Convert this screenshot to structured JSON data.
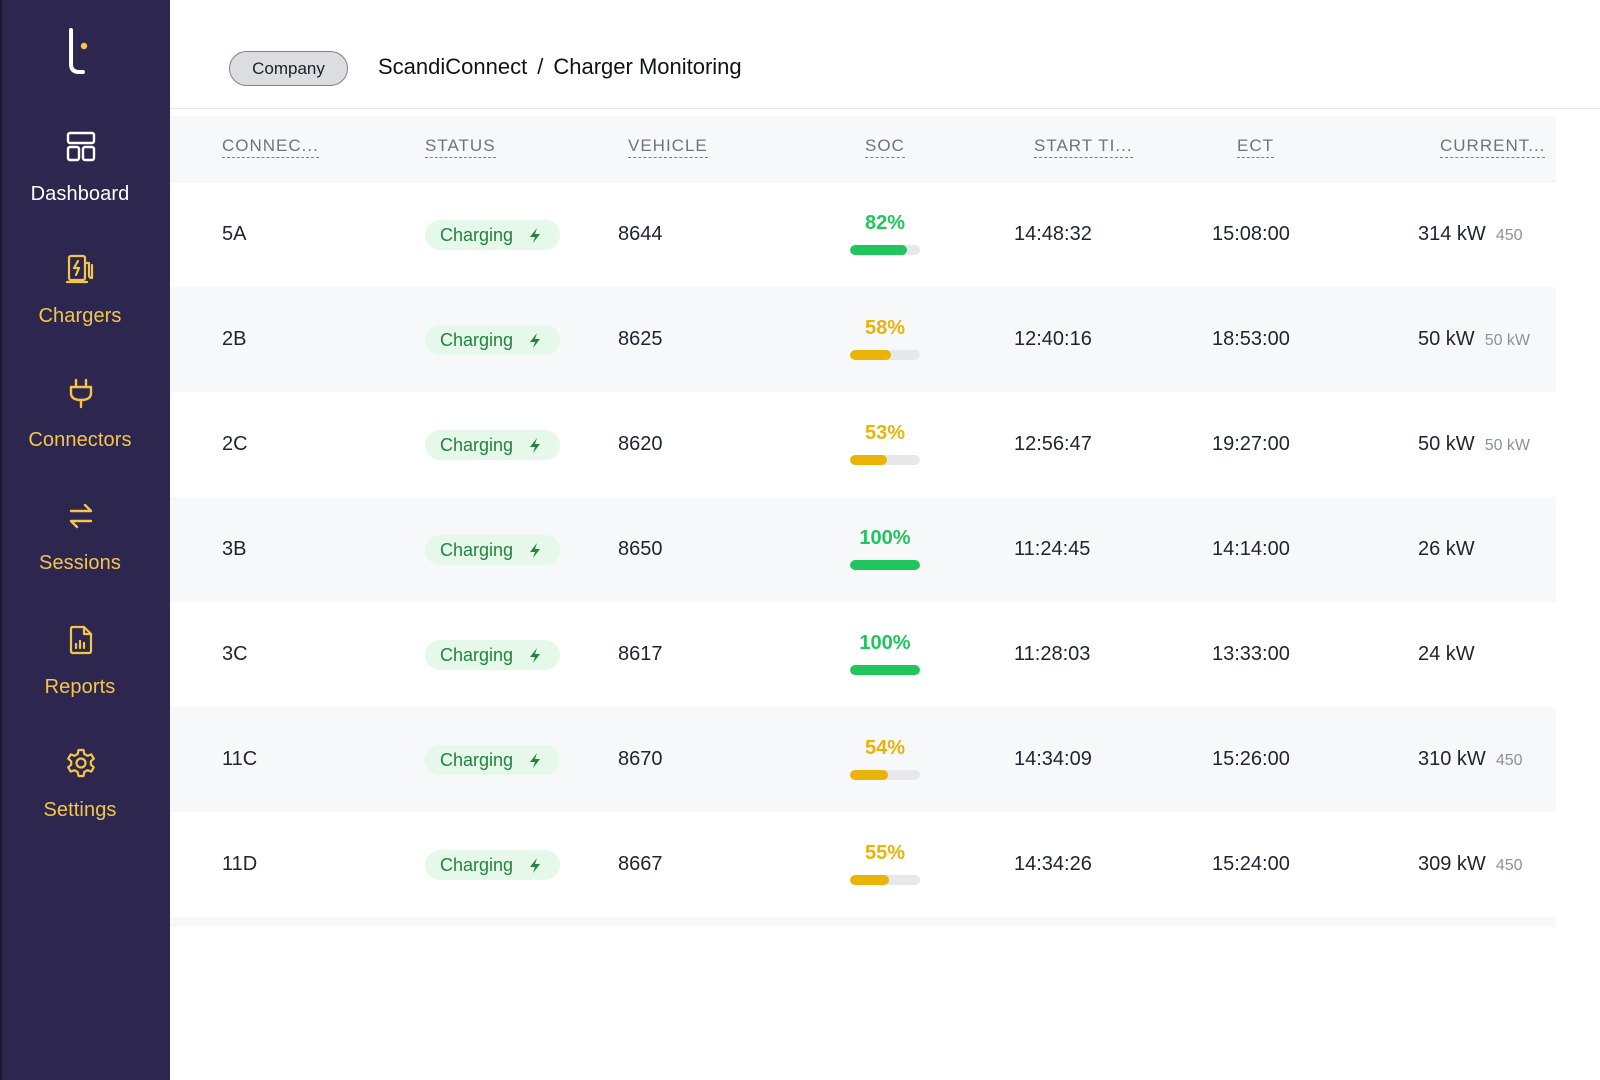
{
  "sidebar": {
    "items": [
      {
        "label": "Dashboard",
        "icon": "dashboard-icon",
        "active": true
      },
      {
        "label": "Chargers",
        "icon": "charger-icon"
      },
      {
        "label": "Connectors",
        "icon": "plug-icon"
      },
      {
        "label": "Sessions",
        "icon": "arrows-exchange-icon"
      },
      {
        "label": "Reports",
        "icon": "report-icon"
      },
      {
        "label": "Settings",
        "icon": "gear-icon"
      }
    ]
  },
  "header": {
    "company_button": "Company",
    "breadcrumb": [
      "ScandiConnect",
      "/",
      "Charger Monitoring"
    ]
  },
  "table": {
    "columns": [
      "CONNEC...",
      "STATUS",
      "VEHICLE",
      "SOC",
      "START TI...",
      "ECT",
      "CURRENT..."
    ],
    "rows": [
      {
        "connector": "5A",
        "status": "Charging",
        "vehicle": "8644",
        "soc": "82%",
        "soc_value": 82,
        "soc_color": "#21c55d",
        "start": "14:48:32",
        "ect": "15:08:00",
        "power": "314 kW",
        "max": "450"
      },
      {
        "connector": "2B",
        "status": "Charging",
        "vehicle": "8625",
        "soc": "58%",
        "soc_value": 58,
        "soc_color": "#eab308",
        "start": "12:40:16",
        "ect": "18:53:00",
        "power": "50 kW",
        "max": "50 kW"
      },
      {
        "connector": "2C",
        "status": "Charging",
        "vehicle": "8620",
        "soc": "53%",
        "soc_value": 53,
        "soc_color": "#eab308",
        "start": "12:56:47",
        "ect": "19:27:00",
        "power": "50 kW",
        "max": "50 kW"
      },
      {
        "connector": "3B",
        "status": "Charging",
        "vehicle": "8650",
        "soc": "100%",
        "soc_value": 100,
        "soc_color": "#21c55d",
        "start": "11:24:45",
        "ect": "14:14:00",
        "power": "26 kW",
        "max": ""
      },
      {
        "connector": "3C",
        "status": "Charging",
        "vehicle": "8617",
        "soc": "100%",
        "soc_value": 100,
        "soc_color": "#21c55d",
        "start": "11:28:03",
        "ect": "13:33:00",
        "power": "24 kW",
        "max": ""
      },
      {
        "connector": "11C",
        "status": "Charging",
        "vehicle": "8670",
        "soc": "54%",
        "soc_value": 54,
        "soc_color": "#eab308",
        "start": "14:34:09",
        "ect": "15:26:00",
        "power": "310 kW",
        "max": "450"
      },
      {
        "connector": "11D",
        "status": "Charging",
        "vehicle": "8667",
        "soc": "55%",
        "soc_value": 55,
        "soc_color": "#eab308",
        "start": "14:34:26",
        "ect": "15:24:00",
        "power": "309 kW",
        "max": "450"
      }
    ]
  },
  "colors": {
    "sidebar_bg": "#2d2750",
    "nav_label": "#f3c64a",
    "charging_badge_bg": "#e5f8ea",
    "charging_badge_text": "#23833f"
  }
}
